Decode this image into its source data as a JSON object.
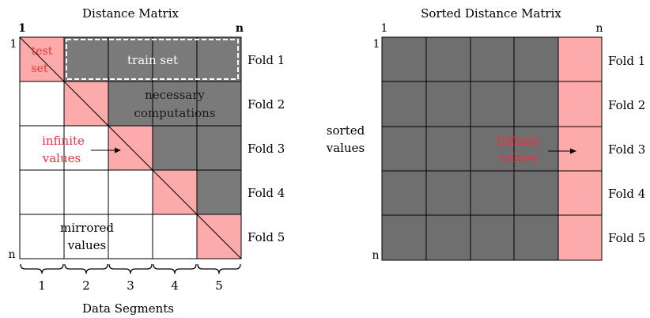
{
  "left": {
    "title": "Distance Matrix",
    "corner_top_left": "1",
    "corner_top_right": "n",
    "corner_left_top": "1",
    "corner_left_bottom": "n",
    "folds": [
      "Fold 1",
      "Fold 2",
      "Fold 3",
      "Fold 4",
      "Fold 5"
    ],
    "segments": [
      "1",
      "2",
      "3",
      "4",
      "5"
    ],
    "xlabel": "Data Segments",
    "test_set_line1": "test",
    "test_set_line2": "set",
    "train_set": "train set",
    "necessary_line1": "necessary",
    "necessary_line2": "computations",
    "infinite_line1": "infinite",
    "infinite_line2": "values",
    "mirrored_line1": "mirrored",
    "mirrored_line2": "values"
  },
  "right": {
    "title": "Sorted Distance Matrix",
    "corner_top_left": "1",
    "corner_top_right": "n",
    "corner_left_top": "1",
    "corner_left_bottom": "n",
    "folds": [
      "Fold 1",
      "Fold 2",
      "Fold 3",
      "Fold 4",
      "Fold 5"
    ],
    "sorted_line1": "sorted",
    "sorted_line2": "values",
    "infinite_line1": "infinite",
    "infinite_line2": "values"
  },
  "colors": {
    "gray": "#7a7a7a",
    "pink": "#fdaaaa",
    "red_text": "#e8323c",
    "white": "#ffffff",
    "line": "#000000"
  }
}
